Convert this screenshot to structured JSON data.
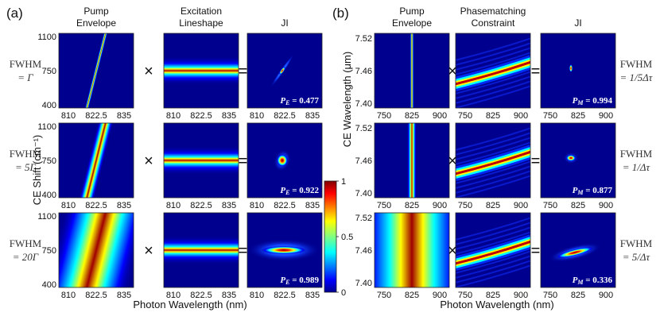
{
  "chart_data": [
    {
      "panel": "(a)",
      "type": "heatmap",
      "column_titles": [
        [
          "Pump",
          "Envelope"
        ],
        [
          "Excitation",
          "Lineshape"
        ],
        [
          "JI"
        ]
      ],
      "operators": [
        "×",
        "="
      ],
      "xlabel": "Photon Wavelength (nm)",
      "ylabel": "CE Shift (cm⁻¹)",
      "x_ticks": [
        "810",
        "822.5",
        "835"
      ],
      "y_ticks": [
        "1100",
        "750",
        "400"
      ],
      "xlim": [
        805,
        840
      ],
      "ylim": [
        350,
        1150
      ],
      "rows": [
        {
          "label": [
            "FWHM",
            "= Γ"
          ],
          "fwhm_factor": 1,
          "purity_label": "P",
          "purity_sub": "E",
          "purity_value": "= 0.477"
        },
        {
          "label": [
            "FWHM",
            "= 5Γ"
          ],
          "fwhm_factor": 5,
          "purity_label": "P",
          "purity_sub": "E",
          "purity_value": "= 0.922"
        },
        {
          "label": [
            "FWHM",
            "= 20Γ"
          ],
          "fwhm_factor": 20,
          "purity_label": "P",
          "purity_sub": "E",
          "purity_value": "= 0.989"
        }
      ]
    },
    {
      "panel": "(b)",
      "type": "heatmap",
      "column_titles": [
        [
          "Pump",
          "Envelope"
        ],
        [
          "Phasematching",
          "Constraint"
        ],
        [
          "JI"
        ]
      ],
      "operators": [
        "×",
        "="
      ],
      "xlabel": "Photon Wavelength (nm)",
      "ylabel": "CE Wavelength (μm)",
      "x_ticks": [
        "750",
        "825",
        "900"
      ],
      "y_ticks": [
        "7.52",
        "7.46",
        "7.40"
      ],
      "xlim": [
        740,
        910
      ],
      "ylim": [
        7.375,
        7.545
      ],
      "rows": [
        {
          "label": [
            "FWHM",
            "= 1/5Δτ"
          ],
          "fwhm_factor": 0.2,
          "purity_label": "P",
          "purity_sub": "M",
          "purity_value": "= 0.994"
        },
        {
          "label": [
            "FWHM",
            "= 1/Δτ"
          ],
          "fwhm_factor": 1,
          "purity_label": "P",
          "purity_sub": "M",
          "purity_value": "= 0.877"
        },
        {
          "label": [
            "FWHM",
            "= 5/Δτ"
          ],
          "fwhm_factor": 5,
          "purity_label": "P",
          "purity_sub": "M",
          "purity_value": "= 0.336"
        }
      ]
    }
  ],
  "colorbar": {
    "colormap": "jet",
    "range": [
      0,
      1
    ],
    "ticks": [
      "1",
      "0.5",
      "0"
    ]
  }
}
